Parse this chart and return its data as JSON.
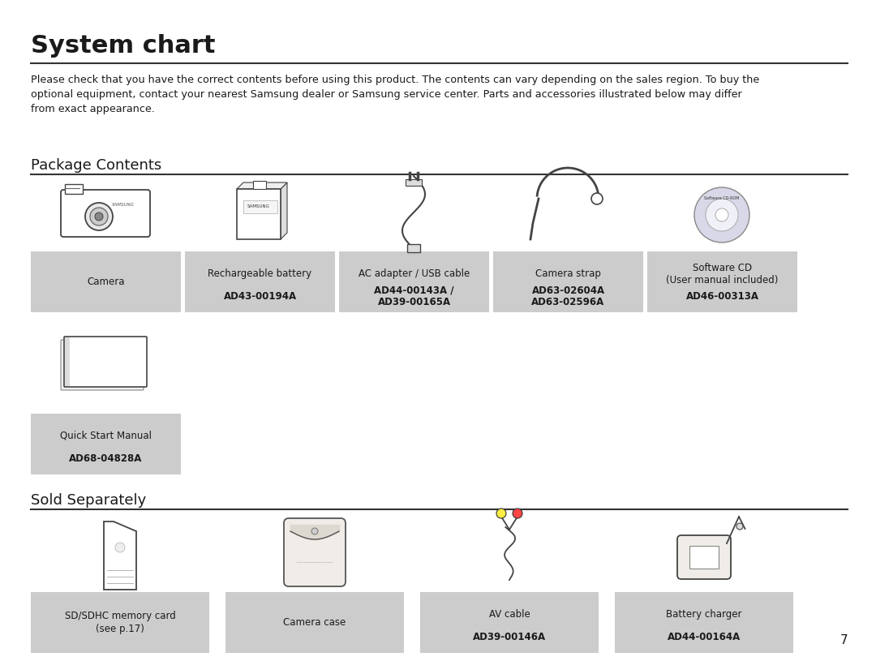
{
  "title": "System chart",
  "description": "Please check that you have the correct contents before using this product. The contents can vary depending on the sales region. To buy the\noptional equipment, contact your nearest Samsung dealer or Samsung service center. Parts and accessories illustrated below may differ\nfrom exact appearance.",
  "section1": "Package Contents",
  "section2": "Sold Separately",
  "bg_color": "#ffffff",
  "box_color": "#cccccc",
  "text_color": "#1a1a1a",
  "page_number": "7",
  "package_items": [
    {
      "label": "Camera",
      "bold": ""
    },
    {
      "label": "Rechargeable battery",
      "bold": "AD43-00194A"
    },
    {
      "label": "AC adapter / USB cable",
      "bold": "AD44-00143A /\nAD39-00165A"
    },
    {
      "label": "Camera strap",
      "bold": "AD63-02604A\nAD63-02596A"
    },
    {
      "label": "Software CD\n(User manual included)",
      "bold": "AD46-00313A"
    }
  ],
  "extra_item": {
    "label": "Quick Start Manual",
    "bold": "AD68-04828A"
  },
  "sold_items": [
    {
      "label": "SD/SDHC memory card\n(see p.17)",
      "bold": ""
    },
    {
      "label": "Camera case",
      "bold": ""
    },
    {
      "label": "AV cable",
      "bold": "AD39-00146A"
    },
    {
      "label": "Battery charger",
      "bold": "AD44-00164A"
    }
  ]
}
